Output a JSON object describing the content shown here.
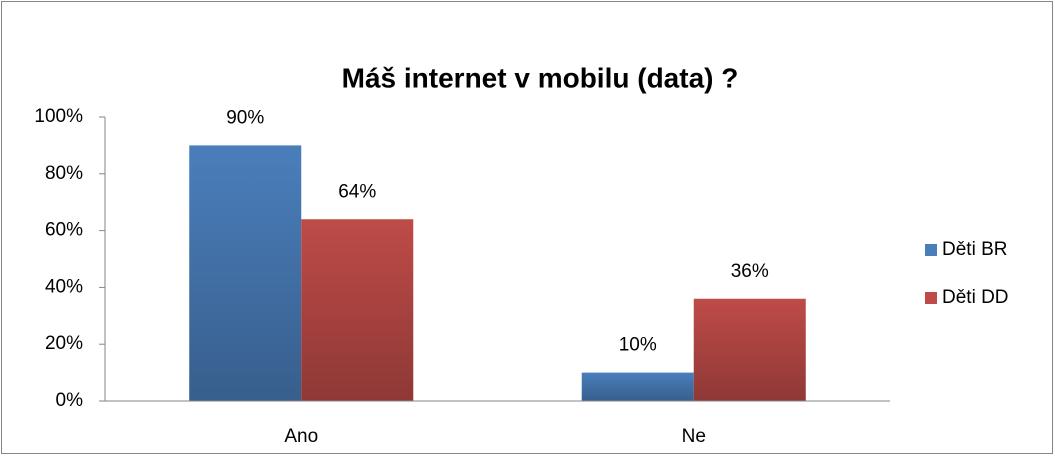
{
  "chart_data": {
    "type": "bar",
    "title": "Máš internet v mobilu (data) ?",
    "categories": [
      "Ano",
      "Ne"
    ],
    "series": [
      {
        "name": "Děti BR",
        "color": "#4a7ebb",
        "values": [
          90,
          10
        ],
        "value_labels": [
          "90%",
          "10%"
        ]
      },
      {
        "name": "Děti DD",
        "color": "#be4b48",
        "values": [
          64,
          36
        ],
        "value_labels": [
          "64%",
          "36%"
        ]
      }
    ],
    "ylim": [
      0,
      100
    ],
    "yticks": [
      {
        "value": 0,
        "label": "0%"
      },
      {
        "value": 20,
        "label": "20%"
      },
      {
        "value": 40,
        "label": "40%"
      },
      {
        "value": 60,
        "label": "60%"
      },
      {
        "value": 80,
        "label": "80%"
      },
      {
        "value": 100,
        "label": "100%"
      }
    ],
    "legend": "right"
  }
}
